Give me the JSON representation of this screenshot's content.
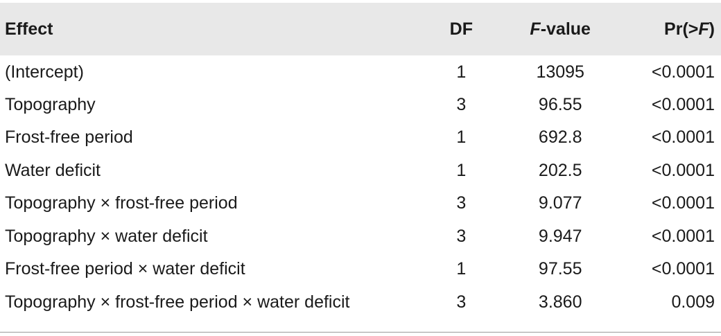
{
  "table": {
    "header": {
      "effect": "Effect",
      "df": "DF",
      "f_value_italic": "F",
      "f_value_rest": "-value",
      "p_prefix": "Pr(>",
      "p_italic": "F",
      "p_suffix": ")"
    },
    "rows": [
      {
        "effect": "(Intercept)",
        "df": "1",
        "f": "13095",
        "p": "<0.0001"
      },
      {
        "effect": "Topography",
        "df": "3",
        "f": "96.55",
        "p": "<0.0001"
      },
      {
        "effect": "Frost-free period",
        "df": "1",
        "f": "692.8",
        "p": "<0.0001"
      },
      {
        "effect": "Water deficit",
        "df": "1",
        "f": "202.5",
        "p": "<0.0001"
      },
      {
        "effect": "Topography × frost-free period",
        "df": "3",
        "f": "9.077",
        "p": "<0.0001"
      },
      {
        "effect": "Topography × water deficit",
        "df": "3",
        "f": "9.947",
        "p": "<0.0001"
      },
      {
        "effect": "Frost-free period × water deficit",
        "df": "1",
        "f": "97.55",
        "p": "<0.0001"
      },
      {
        "effect": "Topography × frost-free period × water deficit",
        "df": "3",
        "f": "3.860",
        "p": "0.009"
      }
    ]
  }
}
